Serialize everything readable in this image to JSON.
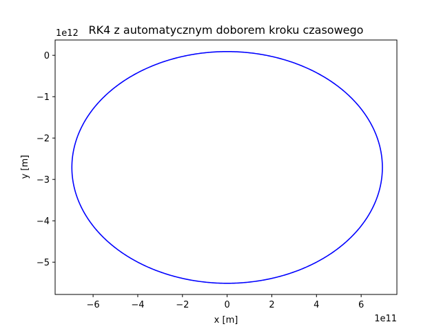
{
  "chart_data": {
    "type": "line",
    "title": "RK4 z automatycznym doborem kroku czasowego",
    "xlabel": "x [m]",
    "ylabel": "y [m]",
    "x_offset_label": "1e11",
    "y_offset_label": "1e12",
    "xlim": [
      -7.7,
      7.6
    ],
    "ylim": [
      -5.78,
      0.37
    ],
    "x_ticks": [
      -6,
      -4,
      -2,
      0,
      2,
      4,
      6
    ],
    "x_tick_labels": [
      "−6",
      "−4",
      "−2",
      "0",
      "2",
      "4",
      "6"
    ],
    "y_ticks": [
      0,
      -1,
      -2,
      -3,
      -4,
      -5
    ],
    "y_tick_labels": [
      "0",
      "−1",
      "−2",
      "−3",
      "−4",
      "−5"
    ],
    "grid": false,
    "series": [
      {
        "color": "#0000ff",
        "shape": "ellipse",
        "center": {
          "x": 0.0,
          "y": -2.71
        },
        "x_semi_axis": 6.95,
        "y_semi_axis": 2.8,
        "x_range": [
          -6.95,
          6.95
        ],
        "y_range": [
          -5.51,
          0.09
        ]
      }
    ]
  }
}
